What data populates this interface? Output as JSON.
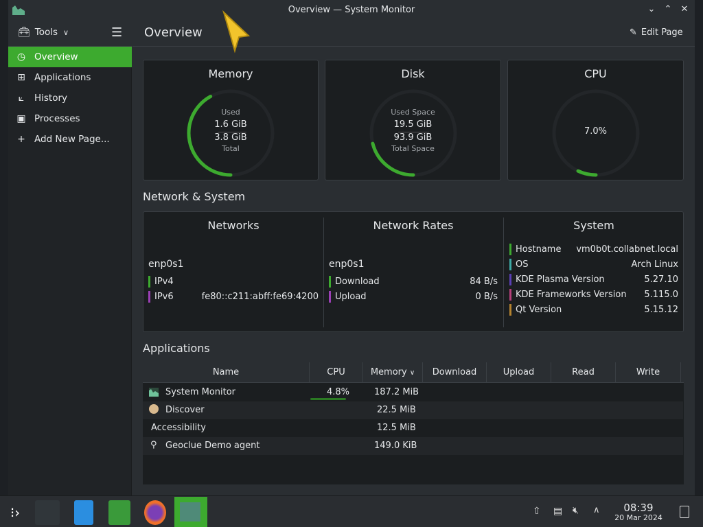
{
  "window": {
    "title": "Overview — System Monitor"
  },
  "sidebar": {
    "tools_label": "Tools",
    "items": [
      {
        "label": "Overview",
        "icon": "speedometer-icon",
        "active": true
      },
      {
        "label": "Applications",
        "icon": "grid-icon"
      },
      {
        "label": "History",
        "icon": "chart-icon"
      },
      {
        "label": "Processes",
        "icon": "terminal-window-icon"
      },
      {
        "label": "Add New Page...",
        "icon": "plus-icon"
      }
    ]
  },
  "header": {
    "title": "Overview",
    "edit_label": "Edit Page"
  },
  "gauges": {
    "memory": {
      "title": "Memory",
      "top_label": "Used",
      "used": "1.6 GiB",
      "total": "3.8 GiB",
      "bottom_label": "Total",
      "fraction": 0.42
    },
    "disk": {
      "title": "Disk",
      "top_label": "Used Space",
      "used": "19.5 GiB",
      "total": "93.9 GiB",
      "bottom_label": "Total Space",
      "fraction": 0.21
    },
    "cpu": {
      "title": "CPU",
      "value": "7.0%",
      "fraction": 0.07
    }
  },
  "network_section": {
    "title": "Network & System",
    "networks": {
      "title": "Networks",
      "iface": "enp0s1",
      "rows": [
        {
          "label": "IPv4",
          "value": "",
          "color": "#3daa2f"
        },
        {
          "label": "IPv6",
          "value": "fe80::c211:abff:fe69:4200",
          "color": "#9b3fb5"
        }
      ]
    },
    "rates": {
      "title": "Network Rates",
      "iface": "enp0s1",
      "rows": [
        {
          "label": "Download",
          "value": "84 B/s",
          "color": "#3daa2f"
        },
        {
          "label": "Upload",
          "value": "0 B/s",
          "color": "#9b3fb5"
        }
      ]
    },
    "system": {
      "title": "System",
      "rows": [
        {
          "label": "Hostname",
          "value": "vm0b0t.collabnet.local",
          "color": "#3daa2f"
        },
        {
          "label": "OS",
          "value": "Arch Linux",
          "color": "#3daaa5"
        },
        {
          "label": "KDE Plasma Version",
          "value": "5.27.10",
          "color": "#5a3fb5"
        },
        {
          "label": "KDE Frameworks Version",
          "value": "5.115.0",
          "color": "#b53f7a"
        },
        {
          "label": "Qt Version",
          "value": "5.15.12",
          "color": "#b5832f"
        }
      ]
    }
  },
  "applications": {
    "title": "Applications",
    "columns": [
      "Name",
      "CPU",
      "Memory",
      "Download",
      "Upload",
      "Read",
      "Write"
    ],
    "rows": [
      {
        "name": "System Monitor",
        "cpu": "4.8%",
        "memory": "187.2 MiB",
        "icon": "system-monitor-icon"
      },
      {
        "name": "Discover",
        "cpu": "",
        "memory": "22.5 MiB",
        "icon": "discover-icon"
      },
      {
        "name": "Accessibility",
        "cpu": "",
        "memory": "12.5 MiB",
        "icon": ""
      },
      {
        "name": "Geoclue Demo agent",
        "cpu": "",
        "memory": "149.0 KiB",
        "icon": "location-pin-icon"
      }
    ]
  },
  "taskbar": {
    "time": "08:39",
    "date": "20 Mar 2024"
  }
}
